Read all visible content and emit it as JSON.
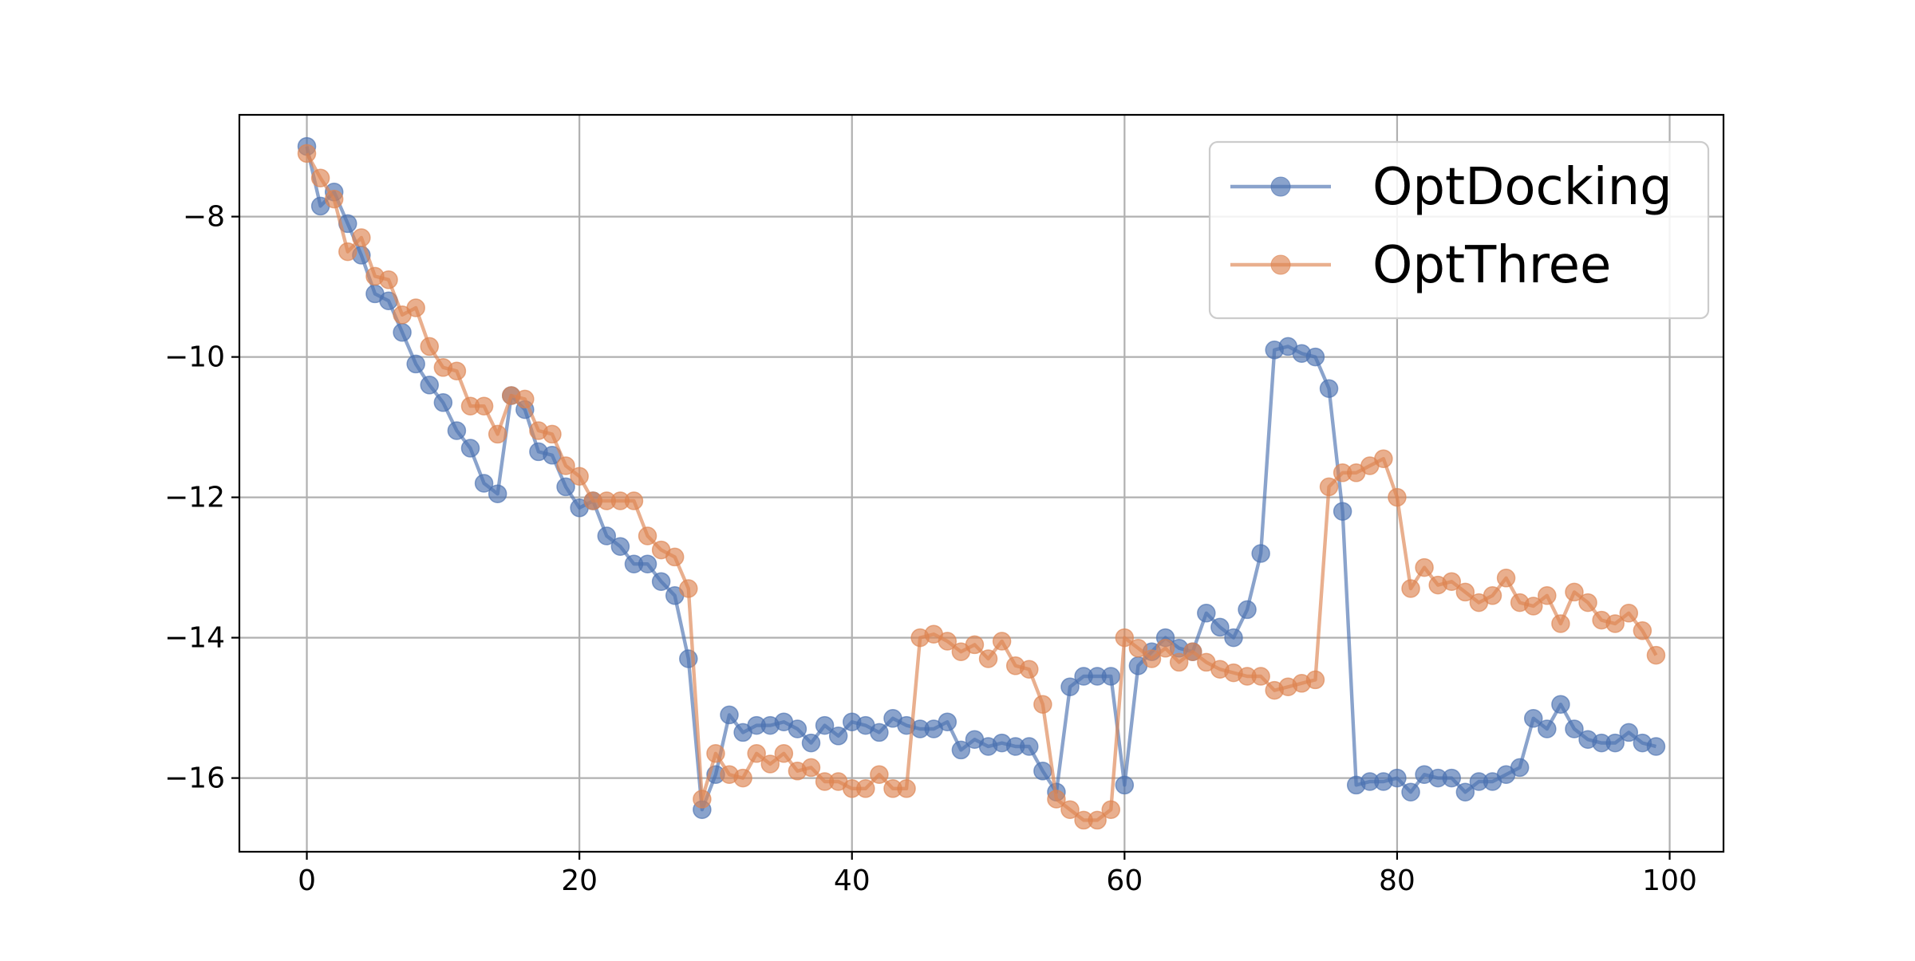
{
  "chart_data": {
    "type": "line",
    "title": "",
    "xlabel": "",
    "ylabel": "",
    "xlim": [
      -4.95,
      103.95
    ],
    "ylim": [
      -17.05,
      -6.55
    ],
    "xticks": [
      0,
      20,
      40,
      60,
      80,
      100
    ],
    "xtick_labels": [
      "0",
      "20",
      "40",
      "60",
      "80",
      "100"
    ],
    "yticks": [
      -8,
      -10,
      -12,
      -14,
      -16
    ],
    "ytick_labels": [
      "−8",
      "−10",
      "−12",
      "−14",
      "−16"
    ],
    "grid": true,
    "legend_position": "top-right",
    "marker": "circle",
    "x": [
      0,
      1,
      2,
      3,
      4,
      5,
      6,
      7,
      8,
      9,
      10,
      11,
      12,
      13,
      14,
      15,
      16,
      17,
      18,
      19,
      20,
      21,
      22,
      23,
      24,
      25,
      26,
      27,
      28,
      29,
      30,
      31,
      32,
      33,
      34,
      35,
      36,
      37,
      38,
      39,
      40,
      41,
      42,
      43,
      44,
      45,
      46,
      47,
      48,
      49,
      50,
      51,
      52,
      53,
      54,
      55,
      56,
      57,
      58,
      59,
      60,
      61,
      62,
      63,
      64,
      65,
      66,
      67,
      68,
      69,
      70,
      71,
      72,
      73,
      74,
      75,
      76,
      77,
      78,
      79,
      80,
      81,
      82,
      83,
      84,
      85,
      86,
      87,
      88,
      89,
      90,
      91,
      92,
      93,
      94,
      95,
      96,
      97,
      98,
      99
    ],
    "series": [
      {
        "name": "OptDocking",
        "color": "#4c72b0",
        "values": [
          -7.0,
          -7.85,
          -7.65,
          -8.1,
          -8.55,
          -9.1,
          -9.2,
          -9.65,
          -10.1,
          -10.4,
          -10.65,
          -11.05,
          -11.3,
          -11.8,
          -11.95,
          -10.55,
          -10.75,
          -11.35,
          -11.4,
          -11.85,
          -12.15,
          -12.05,
          -12.55,
          -12.7,
          -12.95,
          -12.95,
          -13.2,
          -13.4,
          -14.3,
          -16.45,
          -15.95,
          -15.1,
          -15.35,
          -15.25,
          -15.25,
          -15.2,
          -15.3,
          -15.5,
          -15.25,
          -15.4,
          -15.2,
          -15.25,
          -15.35,
          -15.15,
          -15.25,
          -15.3,
          -15.3,
          -15.2,
          -15.6,
          -15.45,
          -15.55,
          -15.5,
          -15.55,
          -15.55,
          -15.9,
          -16.2,
          -14.7,
          -14.55,
          -14.55,
          -14.55,
          -16.1,
          -14.4,
          -14.2,
          -14.0,
          -14.15,
          -14.2,
          -13.65,
          -13.85,
          -14.0,
          -13.6,
          -12.8,
          -9.9,
          -9.85,
          -9.95,
          -10.0,
          -10.45,
          -12.2,
          -16.1,
          -16.05,
          -16.05,
          -16.0,
          -16.2,
          -15.95,
          -16.0,
          -16.0,
          -16.2,
          -16.05,
          -16.05,
          -15.95,
          -15.85,
          -15.15,
          -15.3,
          -14.95,
          -15.3,
          -15.45,
          -15.5,
          -15.5,
          -15.35,
          -15.5,
          -15.55
        ]
      },
      {
        "name": "OptThree",
        "color": "#dd8452",
        "values": [
          -7.1,
          -7.45,
          -7.75,
          -8.5,
          -8.3,
          -8.85,
          -8.9,
          -9.4,
          -9.3,
          -9.85,
          -10.15,
          -10.2,
          -10.7,
          -10.7,
          -11.1,
          -10.55,
          -10.6,
          -11.05,
          -11.1,
          -11.55,
          -11.7,
          -12.05,
          -12.05,
          -12.05,
          -12.05,
          -12.55,
          -12.75,
          -12.85,
          -13.3,
          -16.3,
          -15.65,
          -15.95,
          -16.0,
          -15.65,
          -15.8,
          -15.65,
          -15.9,
          -15.85,
          -16.05,
          -16.05,
          -16.15,
          -16.15,
          -15.95,
          -16.15,
          -16.15,
          -14.0,
          -13.95,
          -14.05,
          -14.2,
          -14.1,
          -14.3,
          -14.05,
          -14.4,
          -14.45,
          -14.95,
          -16.3,
          -16.45,
          -16.6,
          -16.6,
          -16.45,
          -14.0,
          -14.15,
          -14.3,
          -14.15,
          -14.35,
          -14.2,
          -14.35,
          -14.45,
          -14.5,
          -14.55,
          -14.55,
          -14.75,
          -14.7,
          -14.65,
          -14.6,
          -11.85,
          -11.65,
          -11.65,
          -11.55,
          -11.45,
          -12.0,
          -13.3,
          -13.0,
          -13.25,
          -13.2,
          -13.35,
          -13.5,
          -13.4,
          -13.15,
          -13.5,
          -13.55,
          -13.4,
          -13.8,
          -13.35,
          -13.5,
          -13.75,
          -13.8,
          -13.65,
          -13.9,
          -14.25
        ]
      }
    ]
  }
}
